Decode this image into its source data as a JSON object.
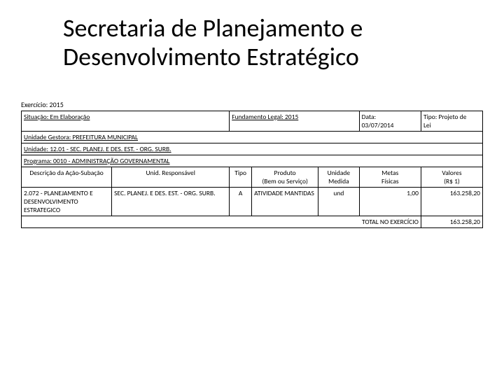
{
  "title": "Secretaria de Planejamento e Desenvolvimento Estratégico",
  "exercicio_label": "Exercício: 2015",
  "header": {
    "situacao": "Situação: Em Elaboração",
    "fundamento": "Fundamento Legal: 2015",
    "data_label": "Data:",
    "data_value": "03/07/2014",
    "tipo_label": "Tipo: Projeto de",
    "tipo_value": "Lei",
    "unidade_gestora": "Unidade Gestora: PREFEITURA MUNICIPAL",
    "unidade": "Unidade: 12.01 - SEC. PLANEJ. E DES. EST. - ORG. SURB.",
    "programa": "Programa: 0010 - ADMINISTRAÇÃO GOVERNAMENTAL"
  },
  "columns": {
    "descricao": "Descrição da Ação-Subação",
    "unid_responsavel": "Unid. Responsável",
    "tipo": "Tipo",
    "produto_l1": "Produto",
    "produto_l2": "(Bem ou Serviço)",
    "unidade_l1": "Unidade",
    "unidade_l2": "Medida",
    "metas_l1": "Metas",
    "metas_l2": "Físicas",
    "valores_l1": "Valores",
    "valores_l2": "(R$ 1)"
  },
  "rows": [
    {
      "descricao": "2.072 - PLANEJAMENTO E DESENVOLVIMENTO ESTRATEGICO",
      "unid_responsavel": "SEC. PLANEJ. E DES. EST. - ORG. SURB.",
      "tipo": "A",
      "produto": "ATIVIDADE MANTIDAS",
      "unidade_medida": "und",
      "metas": "1,00",
      "valor": "163.258,20"
    }
  ],
  "total": {
    "label": "TOTAL NO EXERCÍCIO",
    "valor": "163.258,20"
  },
  "style": {
    "text_color": "#000000",
    "background": "#ffffff",
    "border_color": "#000000",
    "title_fontsize": 36,
    "body_fontsize": 9.5
  }
}
